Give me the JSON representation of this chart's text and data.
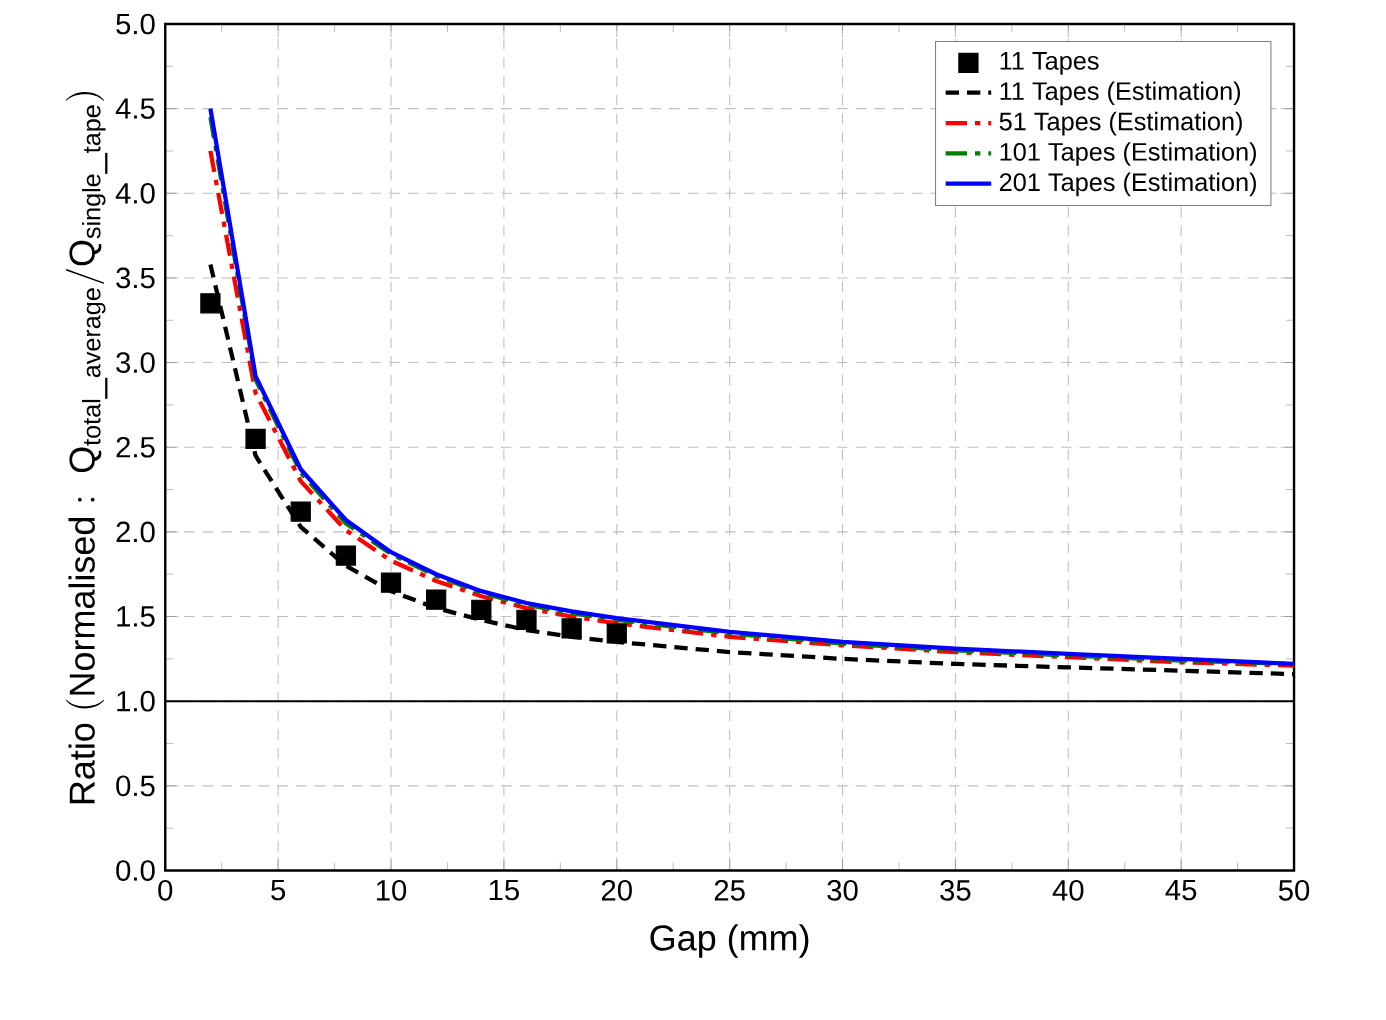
{
  "chart_data": {
    "type": "line",
    "xlabel": "Gap (mm)",
    "ylabel": "\\mathrm{Ratio\\ (Normalised:\\ Q_{total\\_average}/Q_{single\\_tape})}",
    "xlim": [
      0,
      50
    ],
    "ylim": [
      0,
      5
    ],
    "xticks": [
      0,
      5,
      10,
      15,
      20,
      25,
      30,
      35,
      40,
      45,
      50
    ],
    "yticks": [
      {
        "value": 0,
        "label": "0.0"
      },
      {
        "value": 0.5,
        "label": "0.5"
      },
      {
        "value": 1,
        "label": "1.0"
      },
      {
        "value": 1.5,
        "label": "1.5"
      },
      {
        "value": 2,
        "label": "2.0"
      },
      {
        "value": 2.5,
        "label": "2.5"
      },
      {
        "value": 3,
        "label": "3.0"
      },
      {
        "value": 3.5,
        "label": "3.5"
      },
      {
        "value": 4,
        "label": "4.0"
      },
      {
        "value": 4.5,
        "label": "4.5"
      },
      {
        "value": 5,
        "label": "5.0"
      }
    ],
    "grid": true,
    "legend": "top right",
    "ref_lines": [
      {
        "axis": "y",
        "value": 1,
        "color": "#000000",
        "line_style": "solid"
      }
    ],
    "series": [
      {
        "name": "11 Tapes",
        "type": "scatter",
        "marker": "square",
        "color": "#000000",
        "x": [
          2,
          4,
          6,
          8,
          10,
          12,
          14,
          16,
          18,
          20
        ],
        "values": [
          3.35,
          2.55,
          2.12,
          1.86,
          1.7,
          1.6,
          1.54,
          1.48,
          1.43,
          1.4
        ]
      },
      {
        "name": "11 Tapes (Estimation)",
        "type": "line",
        "line_style": "dashed",
        "color": "#000000",
        "x": [
          2,
          4,
          6,
          8,
          10,
          12,
          14,
          16,
          18,
          20,
          25,
          30,
          35,
          40,
          45,
          50
        ],
        "values": [
          3.58,
          2.45,
          2.03,
          1.8,
          1.65,
          1.55,
          1.48,
          1.42,
          1.38,
          1.35,
          1.29,
          1.25,
          1.22,
          1.2,
          1.18,
          1.16
        ]
      },
      {
        "name": "51 Tapes (Estimation)",
        "type": "line",
        "line_style": "dashdot",
        "color": "#ff0000",
        "x": [
          2,
          4,
          6,
          8,
          10,
          12,
          14,
          16,
          18,
          20,
          25,
          30,
          35,
          40,
          45,
          50
        ],
        "values": [
          4.25,
          2.82,
          2.3,
          2.01,
          1.83,
          1.71,
          1.62,
          1.55,
          1.5,
          1.46,
          1.38,
          1.33,
          1.29,
          1.26,
          1.23,
          1.21
        ]
      },
      {
        "name": "101 Tapes (Estimation)",
        "type": "line",
        "line_style": "dashdot",
        "color": "#008000",
        "x": [
          2,
          4,
          6,
          8,
          10,
          12,
          14,
          16,
          18,
          20,
          25,
          30,
          35,
          40,
          45,
          50
        ],
        "values": [
          4.45,
          2.9,
          2.35,
          2.05,
          1.87,
          1.74,
          1.64,
          1.57,
          1.52,
          1.48,
          1.4,
          1.34,
          1.3,
          1.27,
          1.24,
          1.22
        ]
      },
      {
        "name": "201 Tapes (Estimation)",
        "type": "line",
        "line_style": "solid",
        "color": "#0000ff",
        "x": [
          2,
          4,
          6,
          8,
          10,
          12,
          14,
          16,
          18,
          20,
          25,
          30,
          35,
          40,
          45,
          50
        ],
        "values": [
          4.5,
          2.92,
          2.37,
          2.07,
          1.88,
          1.75,
          1.65,
          1.58,
          1.53,
          1.49,
          1.41,
          1.35,
          1.31,
          1.28,
          1.25,
          1.22
        ]
      }
    ]
  }
}
